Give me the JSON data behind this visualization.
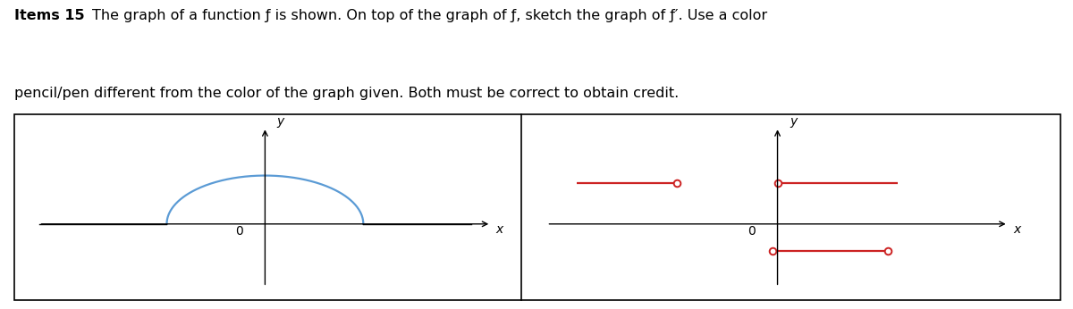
{
  "fig_width": 12.0,
  "fig_height": 3.46,
  "title_bold": "Items 15",
  "title_line1_regular": " The graph of a function f is shown. On top of the graph of f, sketch the graph of f′. Use a color",
  "title_line2": "pencil/pen different from the color of the graph given. Both must be correct to obtain credit.",
  "left_panel": {
    "xlim": [
      -2.5,
      2.5
    ],
    "ylim": [
      -1.5,
      2.2
    ],
    "semicircle_color": "#5b9bd5",
    "semicircle_lw": 1.6,
    "zero_label": "0",
    "x_label": "x",
    "y_label": "y"
  },
  "right_panel": {
    "xlim": [
      -2.5,
      2.5
    ],
    "ylim": [
      -1.5,
      2.2
    ],
    "fprime_color": "#cc2222",
    "fprime_lw": 1.6,
    "zero_label": "0",
    "x_label": "x",
    "y_label": "y"
  }
}
